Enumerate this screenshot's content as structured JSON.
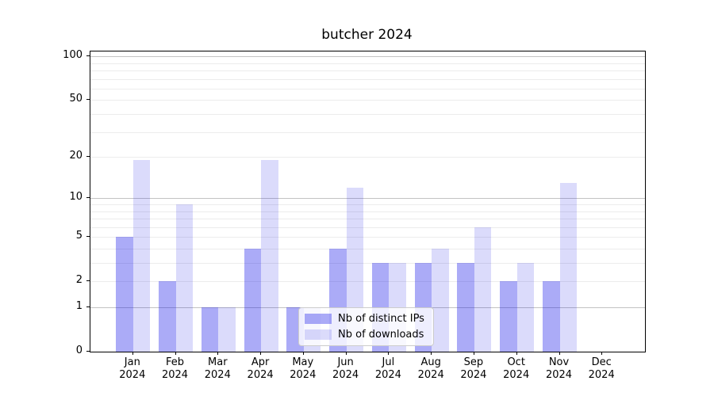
{
  "figure": {
    "background": "#ffffff"
  },
  "chart_data": {
    "type": "bar",
    "title": "butcher 2024",
    "categories": [
      "Jan",
      "Feb",
      "Mar",
      "Apr",
      "May",
      "Jun",
      "Jul",
      "Aug",
      "Sep",
      "Oct",
      "Nov",
      "Dec"
    ],
    "year_label": "2024",
    "series": [
      {
        "name": "Nb of distinct IPs",
        "fill": "rgba(0,0,230,0.33)",
        "fill_hex_on_white": "#aaaaf7",
        "values": [
          5,
          2,
          1,
          4,
          1,
          4,
          3,
          3,
          3,
          2,
          2,
          0
        ]
      },
      {
        "name": "Nb of downloads",
        "fill": "rgba(0,0,230,0.14)",
        "fill_hex_on_white": "#dcdcfa",
        "values": [
          19,
          9,
          1,
          19,
          1,
          12,
          3,
          4,
          6,
          3,
          13,
          0
        ]
      }
    ],
    "xlabel": "",
    "ylabel": "",
    "yscale": "log1p",
    "ylim": [
      0,
      108
    ],
    "yticks": [
      100,
      50,
      20,
      10,
      5,
      2,
      1,
      0
    ],
    "grid": "on",
    "grid_major": [
      1,
      10,
      100
    ],
    "grid_minor": [
      2,
      3,
      4,
      5,
      6,
      7,
      8,
      9,
      20,
      30,
      40,
      50,
      60,
      70,
      80,
      90
    ],
    "grid_major_color": "#c3c3c3",
    "grid_minor_color": "#ececec",
    "legend_position": "lower-center"
  }
}
